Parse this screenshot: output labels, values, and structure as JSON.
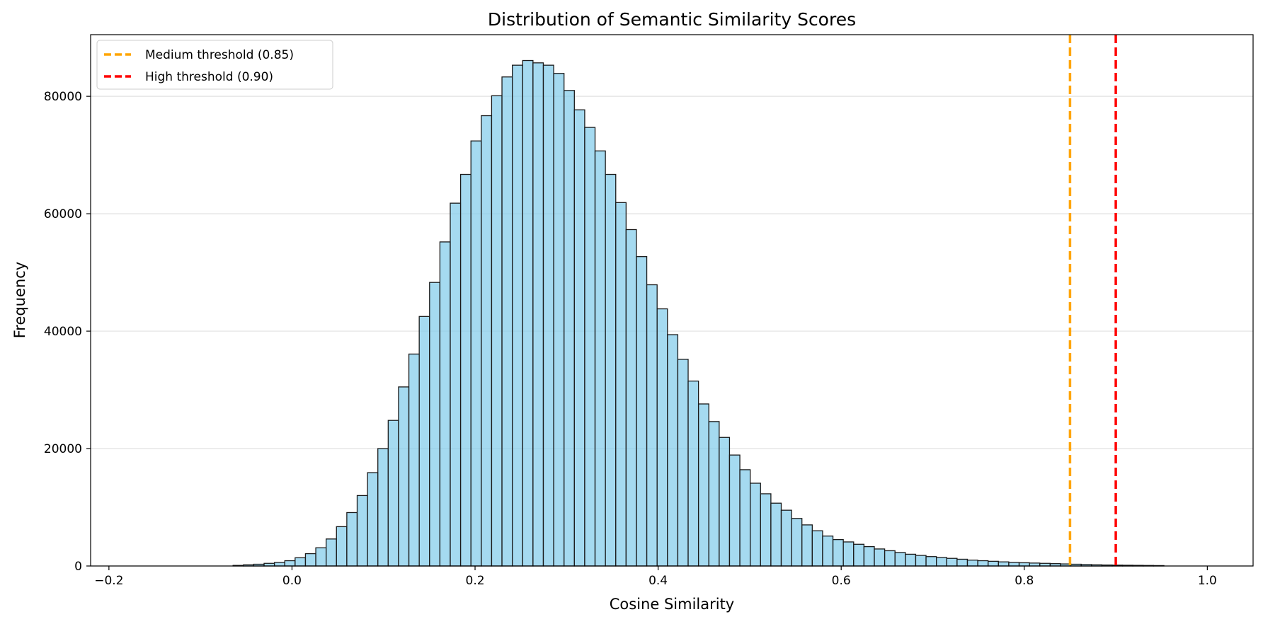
{
  "chart_data": {
    "type": "bar",
    "title": "Distribution of Semantic Similarity Scores",
    "xlabel": "Cosine Similarity",
    "ylabel": "Frequency",
    "xlim": [
      -0.22,
      1.05
    ],
    "ylim": [
      0,
      90500
    ],
    "xticks": [
      -0.2,
      0.0,
      0.2,
      0.4,
      0.6,
      0.8,
      1.0
    ],
    "xtick_labels": [
      "−0.2",
      "0.0",
      "0.2",
      "0.4",
      "0.6",
      "0.8",
      "1.0"
    ],
    "yticks": [
      0,
      20000,
      40000,
      60000,
      80000
    ],
    "ytick_labels": [
      "0",
      "20000",
      "40000",
      "60000",
      "80000"
    ],
    "grid": "horizontal",
    "legend_position": "top-left",
    "bar_color": "#87ceeb",
    "bar_edge_color": "#1a1a1a",
    "bin_start": -0.2,
    "bin_width": 0.0113,
    "values": [
      0,
      0,
      0,
      0,
      0,
      0,
      0,
      0,
      0,
      0,
      0,
      0,
      100,
      200,
      300,
      450,
      600,
      900,
      1400,
      2100,
      3100,
      4600,
      6700,
      9100,
      12000,
      15900,
      20000,
      24800,
      30500,
      36100,
      42500,
      48300,
      55200,
      61800,
      66700,
      72400,
      76700,
      80100,
      83300,
      85300,
      86100,
      85700,
      85300,
      83900,
      81000,
      77700,
      74700,
      70700,
      66700,
      61900,
      57300,
      52700,
      47900,
      43800,
      39400,
      35200,
      31500,
      27600,
      24600,
      21900,
      18900,
      16400,
      14100,
      12300,
      10700,
      9500,
      8100,
      7000,
      6000,
      5100,
      4500,
      4100,
      3700,
      3300,
      2900,
      2600,
      2300,
      2000,
      1800,
      1600,
      1450,
      1300,
      1150,
      1000,
      900,
      800,
      700,
      600,
      550,
      500,
      450,
      400,
      350,
      300,
      250,
      200,
      170,
      150,
      130,
      110,
      90,
      70,
      0,
      0,
      0,
      0,
      0,
      0,
      0,
      0,
      0,
      0
    ],
    "thresholds": [
      {
        "label": "Medium threshold (0.85)",
        "x": 0.85,
        "color": "#ffa500"
      },
      {
        "label": "High threshold (0.90)",
        "x": 0.9,
        "color": "#ff0000"
      }
    ]
  }
}
